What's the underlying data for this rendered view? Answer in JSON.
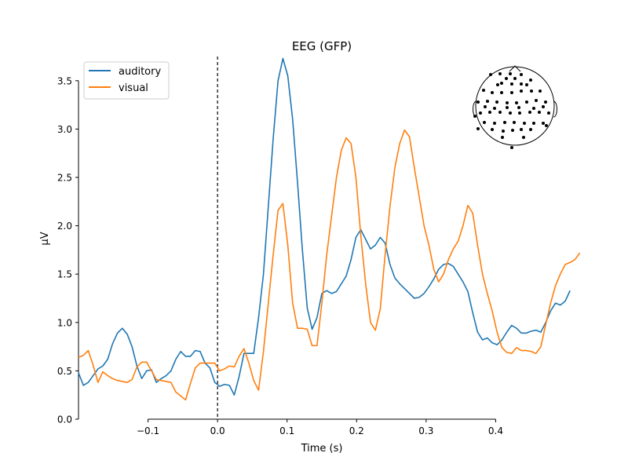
{
  "chart_data": {
    "type": "line",
    "title": "EEG (GFP)",
    "xlabel": "Time (s)",
    "ylabel": "µV",
    "xlim": [
      -0.2,
      0.5
    ],
    "ylim": [
      0,
      3.75
    ],
    "x_ticks": [
      -0.1,
      0.0,
      0.1,
      0.2,
      0.3,
      0.4
    ],
    "x_tick_labels": [
      "−0.1",
      "0.0",
      "0.1",
      "0.2",
      "0.3",
      "0.4"
    ],
    "y_ticks": [
      0.0,
      0.5,
      1.0,
      1.5,
      2.0,
      2.5,
      3.0,
      3.5
    ],
    "y_tick_labels": [
      "0.0",
      "0.5",
      "1.0",
      "1.5",
      "2.0",
      "2.5",
      "3.0",
      "3.5"
    ],
    "grid": false,
    "legend_position": "top-left",
    "stimulus_onset": 0.0,
    "series": [
      {
        "name": "auditory",
        "color": "#1f77b4",
        "points": [
          [
            -0.2,
            0.48
          ],
          [
            -0.193,
            0.35
          ],
          [
            -0.186,
            0.38
          ],
          [
            -0.179,
            0.45
          ],
          [
            -0.172,
            0.52
          ],
          [
            -0.165,
            0.55
          ],
          [
            -0.158,
            0.62
          ],
          [
            -0.151,
            0.78
          ],
          [
            -0.144,
            0.89
          ],
          [
            -0.137,
            0.94
          ],
          [
            -0.13,
            0.88
          ],
          [
            -0.123,
            0.75
          ],
          [
            -0.116,
            0.55
          ],
          [
            -0.109,
            0.42
          ],
          [
            -0.102,
            0.5
          ],
          [
            -0.095,
            0.51
          ],
          [
            -0.088,
            0.38
          ],
          [
            -0.081,
            0.42
          ],
          [
            -0.074,
            0.45
          ],
          [
            -0.067,
            0.5
          ],
          [
            -0.06,
            0.62
          ],
          [
            -0.053,
            0.7
          ],
          [
            -0.046,
            0.65
          ],
          [
            -0.039,
            0.65
          ],
          [
            -0.032,
            0.71
          ],
          [
            -0.025,
            0.7
          ],
          [
            -0.018,
            0.58
          ],
          [
            -0.011,
            0.53
          ],
          [
            -0.004,
            0.38
          ],
          [
            0.003,
            0.34
          ],
          [
            0.01,
            0.36
          ],
          [
            0.017,
            0.35
          ],
          [
            0.024,
            0.25
          ],
          [
            0.031,
            0.44
          ],
          [
            0.038,
            0.68
          ],
          [
            0.045,
            0.68
          ],
          [
            0.052,
            0.68
          ],
          [
            0.059,
            1.05
          ],
          [
            0.066,
            1.5
          ],
          [
            0.073,
            2.2
          ],
          [
            0.08,
            2.9
          ],
          [
            0.087,
            3.5
          ],
          [
            0.094,
            3.73
          ],
          [
            0.101,
            3.55
          ],
          [
            0.108,
            3.1
          ],
          [
            0.115,
            2.45
          ],
          [
            0.122,
            1.75
          ],
          [
            0.129,
            1.15
          ],
          [
            0.136,
            0.93
          ],
          [
            0.143,
            1.05
          ],
          [
            0.15,
            1.3
          ],
          [
            0.157,
            1.33
          ],
          [
            0.164,
            1.3
          ],
          [
            0.171,
            1.32
          ],
          [
            0.178,
            1.4
          ],
          [
            0.185,
            1.48
          ],
          [
            0.192,
            1.65
          ],
          [
            0.199,
            1.88
          ],
          [
            0.206,
            1.96
          ],
          [
            0.213,
            1.86
          ],
          [
            0.22,
            1.76
          ],
          [
            0.227,
            1.8
          ],
          [
            0.234,
            1.88
          ],
          [
            0.241,
            1.82
          ],
          [
            0.248,
            1.6
          ],
          [
            0.255,
            1.46
          ],
          [
            0.262,
            1.4
          ],
          [
            0.269,
            1.35
          ],
          [
            0.276,
            1.3
          ],
          [
            0.283,
            1.25
          ],
          [
            0.29,
            1.26
          ],
          [
            0.297,
            1.3
          ],
          [
            0.304,
            1.37
          ],
          [
            0.311,
            1.45
          ],
          [
            0.318,
            1.55
          ],
          [
            0.325,
            1.6
          ],
          [
            0.332,
            1.61
          ],
          [
            0.339,
            1.58
          ],
          [
            0.346,
            1.5
          ],
          [
            0.353,
            1.42
          ],
          [
            0.36,
            1.32
          ],
          [
            0.367,
            1.1
          ],
          [
            0.374,
            0.9
          ],
          [
            0.381,
            0.82
          ],
          [
            0.388,
            0.84
          ],
          [
            0.395,
            0.79
          ],
          [
            0.402,
            0.77
          ],
          [
            0.409,
            0.82
          ],
          [
            0.416,
            0.9
          ],
          [
            0.423,
            0.97
          ],
          [
            0.43,
            0.94
          ],
          [
            0.437,
            0.89
          ],
          [
            0.444,
            0.89
          ],
          [
            0.451,
            0.91
          ],
          [
            0.458,
            0.92
          ],
          [
            0.465,
            0.9
          ],
          [
            0.472,
            1.0
          ],
          [
            0.479,
            1.12
          ],
          [
            0.486,
            1.2
          ],
          [
            0.493,
            1.18
          ],
          [
            0.5,
            1.22
          ],
          [
            0.507,
            1.33
          ]
        ]
      },
      {
        "name": "visual",
        "color": "#ff7f0e",
        "points": [
          [
            -0.2,
            0.64
          ],
          [
            -0.193,
            0.66
          ],
          [
            -0.186,
            0.71
          ],
          [
            -0.179,
            0.56
          ],
          [
            -0.172,
            0.38
          ],
          [
            -0.165,
            0.49
          ],
          [
            -0.158,
            0.45
          ],
          [
            -0.151,
            0.42
          ],
          [
            -0.144,
            0.4
          ],
          [
            -0.137,
            0.39
          ],
          [
            -0.13,
            0.38
          ],
          [
            -0.123,
            0.41
          ],
          [
            -0.116,
            0.54
          ],
          [
            -0.109,
            0.59
          ],
          [
            -0.102,
            0.59
          ],
          [
            -0.095,
            0.5
          ],
          [
            -0.088,
            0.41
          ],
          [
            -0.081,
            0.4
          ],
          [
            -0.074,
            0.39
          ],
          [
            -0.067,
            0.38
          ],
          [
            -0.06,
            0.28
          ],
          [
            -0.053,
            0.24
          ],
          [
            -0.046,
            0.2
          ],
          [
            -0.039,
            0.37
          ],
          [
            -0.032,
            0.53
          ],
          [
            -0.025,
            0.58
          ],
          [
            -0.018,
            0.58
          ],
          [
            -0.011,
            0.58
          ],
          [
            -0.004,
            0.58
          ],
          [
            0.003,
            0.5
          ],
          [
            0.01,
            0.52
          ],
          [
            0.017,
            0.55
          ],
          [
            0.024,
            0.54
          ],
          [
            0.031,
            0.65
          ],
          [
            0.038,
            0.73
          ],
          [
            0.045,
            0.58
          ],
          [
            0.052,
            0.4
          ],
          [
            0.059,
            0.3
          ],
          [
            0.066,
            0.7
          ],
          [
            0.073,
            1.2
          ],
          [
            0.08,
            1.7
          ],
          [
            0.087,
            2.16
          ],
          [
            0.094,
            2.23
          ],
          [
            0.101,
            1.8
          ],
          [
            0.108,
            1.2
          ],
          [
            0.115,
            0.94
          ],
          [
            0.122,
            0.94
          ],
          [
            0.129,
            0.93
          ],
          [
            0.136,
            0.76
          ],
          [
            0.143,
            0.76
          ],
          [
            0.15,
            1.2
          ],
          [
            0.157,
            1.7
          ],
          [
            0.164,
            2.1
          ],
          [
            0.171,
            2.5
          ],
          [
            0.178,
            2.78
          ],
          [
            0.185,
            2.91
          ],
          [
            0.192,
            2.85
          ],
          [
            0.199,
            2.5
          ],
          [
            0.206,
            1.9
          ],
          [
            0.213,
            1.4
          ],
          [
            0.22,
            1.0
          ],
          [
            0.227,
            0.92
          ],
          [
            0.234,
            1.14
          ],
          [
            0.241,
            1.7
          ],
          [
            0.248,
            2.2
          ],
          [
            0.255,
            2.6
          ],
          [
            0.262,
            2.85
          ],
          [
            0.269,
            2.99
          ],
          [
            0.276,
            2.92
          ],
          [
            0.283,
            2.6
          ],
          [
            0.29,
            2.3
          ],
          [
            0.297,
            2.0
          ],
          [
            0.304,
            1.8
          ],
          [
            0.311,
            1.55
          ],
          [
            0.318,
            1.42
          ],
          [
            0.325,
            1.5
          ],
          [
            0.332,
            1.65
          ],
          [
            0.339,
            1.76
          ],
          [
            0.346,
            1.84
          ],
          [
            0.353,
            2.0
          ],
          [
            0.36,
            2.21
          ],
          [
            0.367,
            2.13
          ],
          [
            0.374,
            1.8
          ],
          [
            0.381,
            1.5
          ],
          [
            0.388,
            1.3
          ],
          [
            0.395,
            1.12
          ],
          [
            0.402,
            0.9
          ],
          [
            0.409,
            0.74
          ],
          [
            0.416,
            0.69
          ],
          [
            0.423,
            0.68
          ],
          [
            0.43,
            0.74
          ],
          [
            0.437,
            0.71
          ],
          [
            0.444,
            0.71
          ],
          [
            0.451,
            0.7
          ],
          [
            0.458,
            0.68
          ],
          [
            0.465,
            0.75
          ],
          [
            0.472,
            0.98
          ],
          [
            0.479,
            1.2
          ],
          [
            0.486,
            1.38
          ],
          [
            0.493,
            1.5
          ],
          [
            0.5,
            1.6
          ],
          [
            0.507,
            1.62
          ],
          [
            0.514,
            1.65
          ],
          [
            0.521,
            1.72
          ]
        ]
      }
    ]
  },
  "head_inset": {
    "sensor_count": 59
  }
}
